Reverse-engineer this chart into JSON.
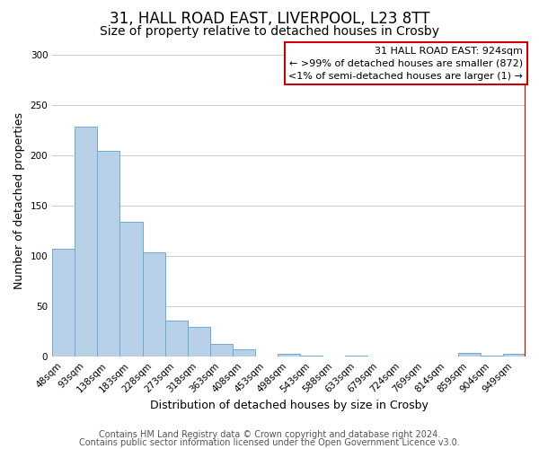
{
  "title": "31, HALL ROAD EAST, LIVERPOOL, L23 8TT",
  "subtitle": "Size of property relative to detached houses in Crosby",
  "xlabel": "Distribution of detached houses by size in Crosby",
  "ylabel": "Number of detached properties",
  "bar_labels": [
    "48sqm",
    "93sqm",
    "138sqm",
    "183sqm",
    "228sqm",
    "273sqm",
    "318sqm",
    "363sqm",
    "408sqm",
    "453sqm",
    "498sqm",
    "543sqm",
    "588sqm",
    "633sqm",
    "679sqm",
    "724sqm",
    "769sqm",
    "814sqm",
    "859sqm",
    "904sqm",
    "949sqm"
  ],
  "bar_values": [
    107,
    229,
    205,
    134,
    104,
    36,
    30,
    13,
    7,
    0,
    3,
    1,
    0,
    1,
    0,
    0,
    0,
    0,
    4,
    1,
    3
  ],
  "bar_color": "#b8d0e8",
  "bar_edge_color": "#6aaad4",
  "highlight_bar_index": 20,
  "highlight_bar_color": "#cc0000",
  "legend_title": "31 HALL ROAD EAST: 924sqm",
  "legend_line1": "← >99% of detached houses are smaller (872)",
  "legend_line2": "<1% of semi-detached houses are larger (1) →",
  "legend_box_color": "#cc0000",
  "footer_line1": "Contains HM Land Registry data © Crown copyright and database right 2024.",
  "footer_line2": "Contains public sector information licensed under the Open Government Licence v3.0.",
  "ylim": [
    0,
    310
  ],
  "yticks": [
    0,
    50,
    100,
    150,
    200,
    250,
    300
  ],
  "title_fontsize": 12,
  "subtitle_fontsize": 10,
  "axis_label_fontsize": 9,
  "tick_fontsize": 7.5,
  "legend_fontsize": 8,
  "footer_fontsize": 7,
  "background_color": "#ffffff",
  "grid_color": "#d0d0d0"
}
